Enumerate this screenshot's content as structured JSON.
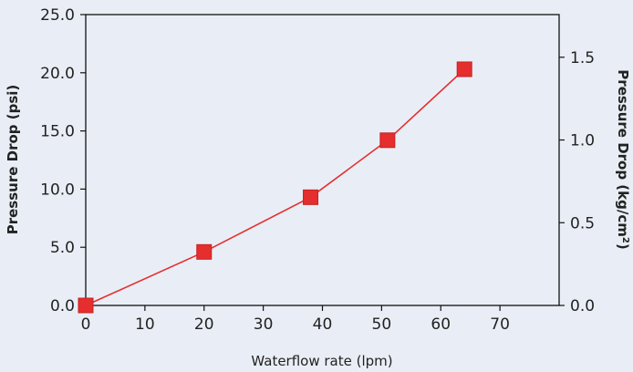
{
  "chart_data": {
    "type": "line",
    "xlabel": "Waterflow rate (lpm)",
    "ylabel_left": "Pressure Drop (psi)",
    "ylabel_right_text": "Pressure Drop (kg/cm",
    "ylabel_right_sup": "2",
    "ylabel_right_close": ")",
    "x_ticks": [
      "0",
      "10",
      "20",
      "30",
      "40",
      "50",
      "60",
      "70"
    ],
    "y_left_ticks": [
      "0.0",
      "5.0",
      "10.0",
      "15.0",
      "20.0",
      "25.0"
    ],
    "y_right_ticks": [
      "0.0",
      "0.5",
      "1.0",
      "1.5"
    ],
    "xlim": [
      0,
      80
    ],
    "ylim_left": [
      0,
      25
    ],
    "ylim_right": [
      0,
      1.7578
    ],
    "series": [
      {
        "x": [
          0,
          20,
          38,
          51,
          64
        ],
        "y": [
          0.0,
          4.6,
          9.3,
          14.2,
          20.3
        ],
        "color": "#e52e2e",
        "marker": "square"
      }
    ],
    "grid": false
  }
}
